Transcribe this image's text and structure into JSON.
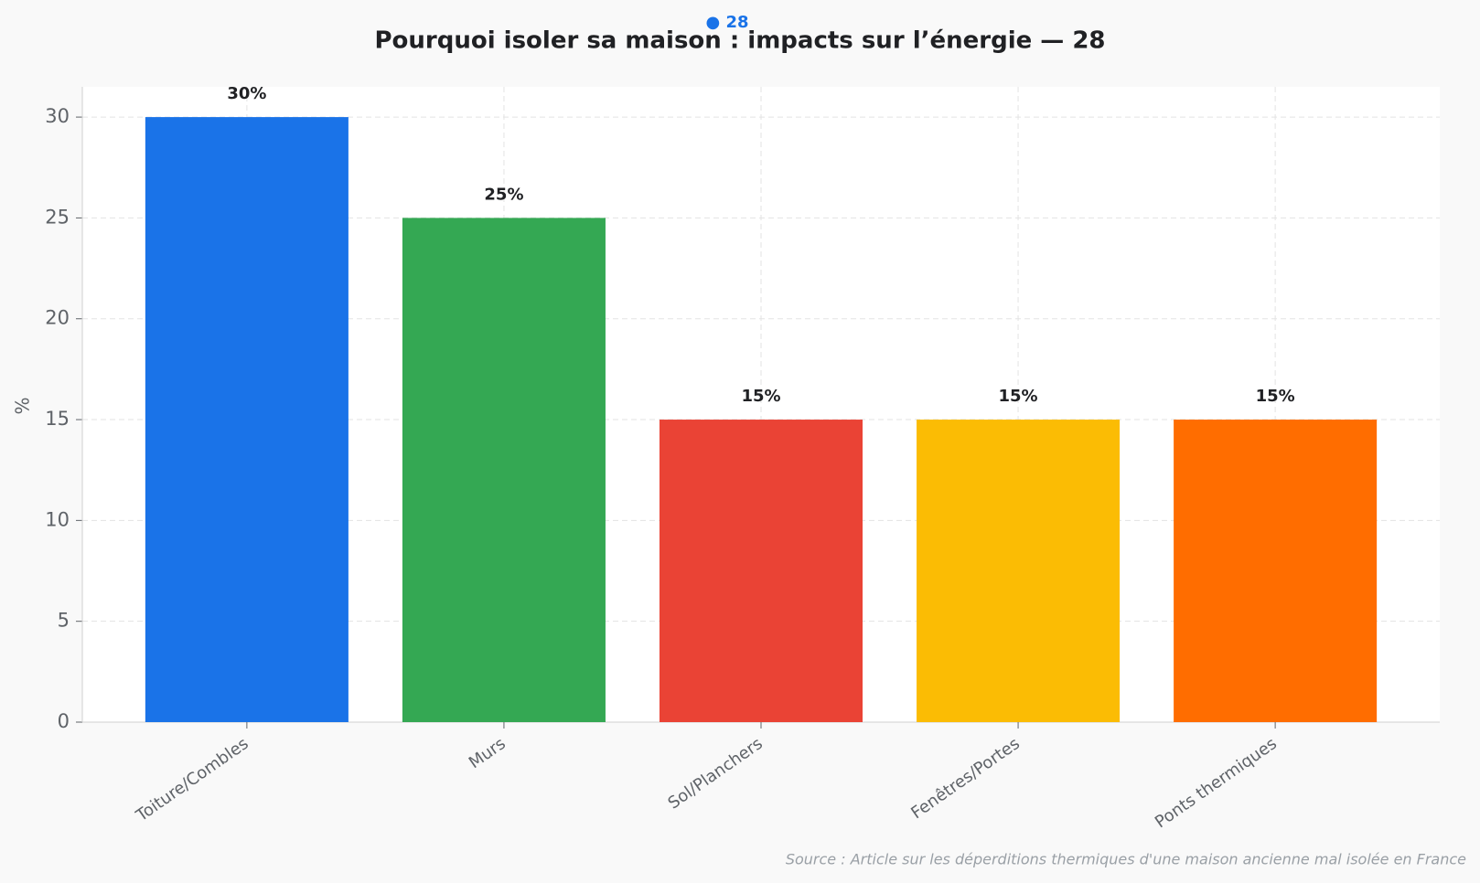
{
  "chart_data": {
    "type": "bar",
    "title": "Pourquoi isoler sa maison : impacts sur l’énergie  — 28",
    "badge": "● 28",
    "ylabel": "%",
    "source": "Source : Article sur les déperditions thermiques d'une maison ancienne mal isolée en France",
    "categories": [
      "Toiture/Combles",
      "Murs",
      "Sol/Planchers",
      "Fenêtres/Portes",
      "Ponts thermiques"
    ],
    "values": [
      30,
      25,
      15,
      15,
      15
    ],
    "value_labels": [
      "30%",
      "25%",
      "15%",
      "15%",
      "15%"
    ],
    "colors": [
      "#1a73e8",
      "#34a853",
      "#ea4335",
      "#fbbc04",
      "#ff6d00"
    ],
    "ylim": [
      0,
      31.5
    ],
    "yticks": [
      0,
      5,
      10,
      15,
      20,
      25,
      30
    ],
    "grid": true
  }
}
